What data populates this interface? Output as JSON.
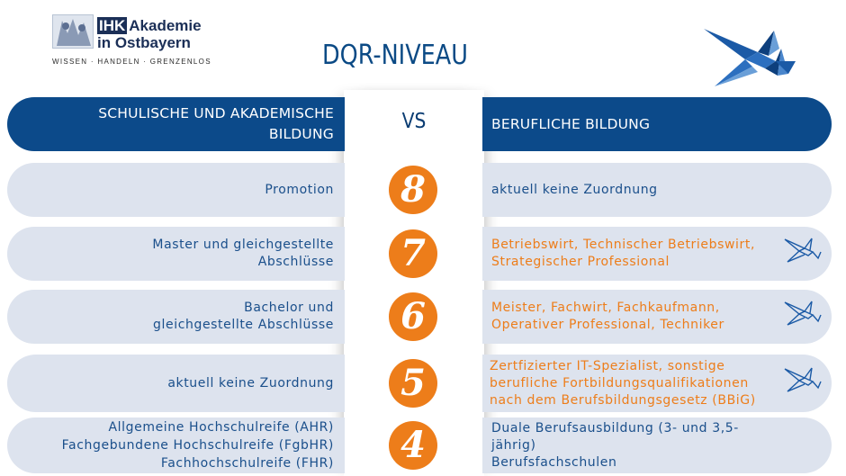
{
  "header_logo": {
    "abbr": "IHK",
    "line1": "Akademie",
    "line2": "in Ostbayern",
    "tagline": "WISSEN · HANDELN · GRENZENLOS",
    "image_icon": "coat-of-arms-icon"
  },
  "title": "DQR-NIVEAU",
  "swallow_icon": "swallow-icon",
  "table": {
    "left_header": "SCHULISCHE UND AKADEMISCHE BILDUNG",
    "left_header_line1": "SCHULISCHE UND AKADEMISCHE",
    "left_header_line2": "BILDUNG",
    "vs": "VS",
    "right_header": "BERUFLICHE BILDUNG",
    "rows": [
      {
        "level": "8",
        "left": [
          "Promotion"
        ],
        "right": [
          "aktuell keine Zuordnung"
        ],
        "right_highlight": false
      },
      {
        "level": "7",
        "left": [
          "Master und gleichgestellte",
          "Abschlüsse"
        ],
        "right": [
          "Betriebswirt, Technischer Betriebswirt,",
          "Strategischer Professional"
        ],
        "right_highlight": true
      },
      {
        "level": "6",
        "left": [
          "Bachelor und",
          "gleichgestellte Abschlüsse"
        ],
        "right": [
          "Meister, Fachwirt, Fachkaufmann,",
          "Operativer Professional, Techniker"
        ],
        "right_highlight": true
      },
      {
        "level": "5",
        "left": [
          "aktuell keine Zuordnung"
        ],
        "right": [
          "Zertfizierter IT-Spezialist, sonstige",
          "berufliche Fortbildungsqualifikationen",
          "nach dem Berufsbildungsgesetz (BBiG)"
        ],
        "right_highlight": true
      },
      {
        "level": "4",
        "left": [
          "Allgemeine Hochschulreife (AHR)",
          "Fachgebundene Hochschulreife (FgbHR)",
          "Fachhochschulreife (FHR)"
        ],
        "right": [
          "Duale Berufsausbildung (3- und 3,5-jährig)",
          "Berufsfachschulen"
        ],
        "right_highlight": false
      }
    ]
  },
  "colors": {
    "brand_blue": "#0c4a8a",
    "row_bg": "#dde3ee",
    "accent_orange": "#ed7d1a",
    "text_blue": "#1a4f8b"
  }
}
